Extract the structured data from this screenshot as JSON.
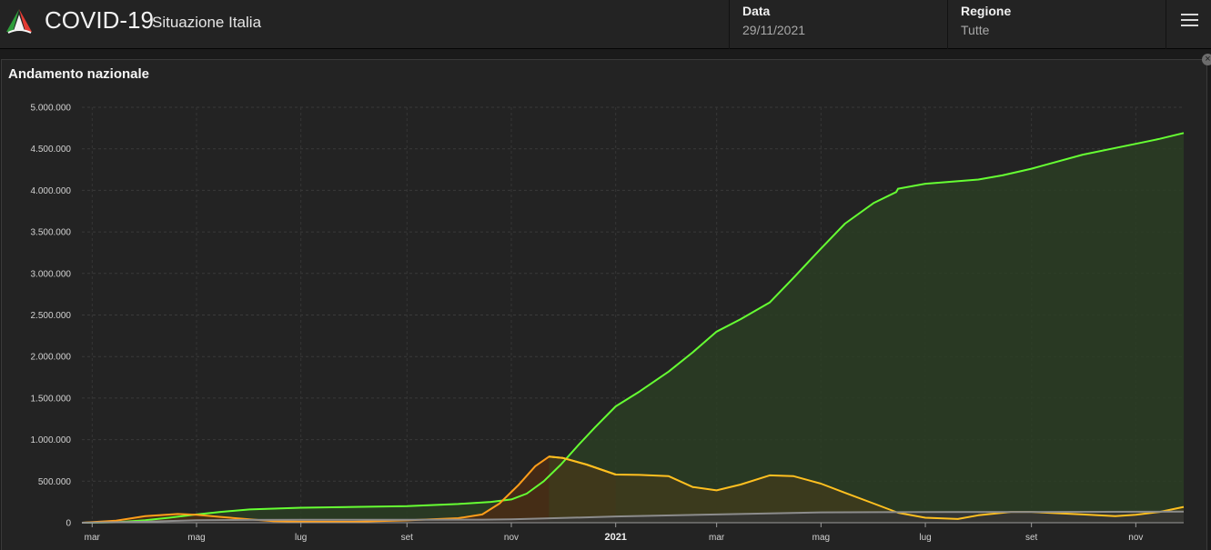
{
  "header": {
    "app_title": "COVID-19",
    "app_subtitle": "Situazione Italia",
    "date_label": "Data",
    "date_value": "29/11/2021",
    "region_label": "Regione",
    "region_value": "Tutte",
    "menu_icon": "hamburger-icon",
    "logo_icon": "italy-logo-icon"
  },
  "panel": {
    "title": "Andamento nazionale",
    "close_icon": "close-icon",
    "close_glyph": "×"
  },
  "colors": {
    "green": "#66ff33",
    "orange": "#ff9e1a",
    "gray": "#8c8c8c",
    "gold": "#ffc020"
  },
  "chart_data": {
    "type": "area",
    "x_axis": {
      "start": "2020-02-24",
      "end": "2021-11-29",
      "ticks": [
        {
          "date": "2020-03-01",
          "label": "mar"
        },
        {
          "date": "2020-05-01",
          "label": "mag"
        },
        {
          "date": "2020-07-01",
          "label": "lug"
        },
        {
          "date": "2020-09-01",
          "label": "set"
        },
        {
          "date": "2020-11-01",
          "label": "nov"
        },
        {
          "date": "2021-01-01",
          "label": "2021",
          "bold": true
        },
        {
          "date": "2021-03-01",
          "label": "mar"
        },
        {
          "date": "2021-05-01",
          "label": "mag"
        },
        {
          "date": "2021-07-01",
          "label": "lug"
        },
        {
          "date": "2021-09-01",
          "label": "set"
        },
        {
          "date": "2021-11-01",
          "label": "nov"
        }
      ]
    },
    "y_axis": {
      "min": 0,
      "max": 5000000,
      "ticks": [
        {
          "value": 0,
          "label": "0"
        },
        {
          "value": 500000,
          "label": "500.000"
        },
        {
          "value": 1000000,
          "label": "1.000.000"
        },
        {
          "value": 1500000,
          "label": "1.500.000"
        },
        {
          "value": 2000000,
          "label": "2.000.000"
        },
        {
          "value": 2500000,
          "label": "2.500.000"
        },
        {
          "value": 3000000,
          "label": "3.000.000"
        },
        {
          "value": 3500000,
          "label": "3.500.000"
        },
        {
          "value": 4000000,
          "label": "4.000.000"
        },
        {
          "value": 4500000,
          "label": "4.500.000"
        },
        {
          "value": 5000000,
          "label": "5.000.000"
        }
      ]
    },
    "grid": true,
    "legend": "none",
    "series": [
      {
        "color": "#66ff33",
        "fill": "#2a3d23",
        "points": [
          [
            "2020-02-24",
            0
          ],
          [
            "2020-03-15",
            5000
          ],
          [
            "2020-04-01",
            30000
          ],
          [
            "2020-04-15",
            60000
          ],
          [
            "2020-05-01",
            100000
          ],
          [
            "2020-05-15",
            130000
          ],
          [
            "2020-06-01",
            160000
          ],
          [
            "2020-06-15",
            170000
          ],
          [
            "2020-07-01",
            180000
          ],
          [
            "2020-08-01",
            190000
          ],
          [
            "2020-09-01",
            200000
          ],
          [
            "2020-10-01",
            225000
          ],
          [
            "2020-10-20",
            250000
          ],
          [
            "2020-11-01",
            280000
          ],
          [
            "2020-11-10",
            350000
          ],
          [
            "2020-11-20",
            500000
          ],
          [
            "2020-11-30",
            700000
          ],
          [
            "2020-12-10",
            930000
          ],
          [
            "2020-12-20",
            1150000
          ],
          [
            "2021-01-01",
            1400000
          ],
          [
            "2021-01-15",
            1580000
          ],
          [
            "2021-02-01",
            1820000
          ],
          [
            "2021-02-15",
            2050000
          ],
          [
            "2021-03-01",
            2300000
          ],
          [
            "2021-03-15",
            2450000
          ],
          [
            "2021-04-01",
            2650000
          ],
          [
            "2021-04-15",
            2950000
          ],
          [
            "2021-05-01",
            3300000
          ],
          [
            "2021-05-15",
            3600000
          ],
          [
            "2021-06-01",
            3850000
          ],
          [
            "2021-06-14",
            3980000
          ],
          [
            "2021-06-15",
            4020000
          ],
          [
            "2021-07-01",
            4080000
          ],
          [
            "2021-08-01",
            4130000
          ],
          [
            "2021-08-15",
            4180000
          ],
          [
            "2021-09-01",
            4260000
          ],
          [
            "2021-10-01",
            4430000
          ],
          [
            "2021-11-01",
            4560000
          ],
          [
            "2021-11-15",
            4620000
          ],
          [
            "2021-11-29",
            4690000
          ]
        ]
      },
      {
        "color": "#ff9e1a",
        "fill": "#4a2c14",
        "points": [
          [
            "2020-02-24",
            0
          ],
          [
            "2020-03-15",
            25000
          ],
          [
            "2020-04-01",
            80000
          ],
          [
            "2020-04-20",
            105000
          ],
          [
            "2020-05-01",
            95000
          ],
          [
            "2020-05-15",
            70000
          ],
          [
            "2020-06-01",
            40000
          ],
          [
            "2020-06-15",
            20000
          ],
          [
            "2020-07-01",
            13000
          ],
          [
            "2020-08-01",
            12000
          ],
          [
            "2020-09-01",
            28000
          ],
          [
            "2020-10-01",
            55000
          ],
          [
            "2020-10-15",
            100000
          ],
          [
            "2020-10-25",
            230000
          ],
          [
            "2020-11-05",
            450000
          ],
          [
            "2020-11-15",
            680000
          ],
          [
            "2020-11-23",
            795000
          ],
          [
            "2020-12-01",
            780000
          ],
          [
            "2020-12-15",
            700000
          ],
          [
            "2021-01-01",
            580000
          ]
        ]
      },
      {
        "color": "#ffc020",
        "fill": "#3e3b1c",
        "points": [
          [
            "2020-11-23",
            795000
          ],
          [
            "2020-12-01",
            780000
          ],
          [
            "2020-12-15",
            700000
          ],
          [
            "2021-01-01",
            580000
          ],
          [
            "2021-01-15",
            575000
          ],
          [
            "2021-02-01",
            560000
          ],
          [
            "2021-02-15",
            430000
          ],
          [
            "2021-03-01",
            390000
          ],
          [
            "2021-03-15",
            460000
          ],
          [
            "2021-04-01",
            570000
          ],
          [
            "2021-04-15",
            560000
          ],
          [
            "2021-05-01",
            470000
          ],
          [
            "2021-05-15",
            360000
          ],
          [
            "2021-06-01",
            230000
          ],
          [
            "2021-06-15",
            120000
          ],
          [
            "2021-07-01",
            60000
          ],
          [
            "2021-07-20",
            45000
          ],
          [
            "2021-08-01",
            90000
          ],
          [
            "2021-08-20",
            130000
          ],
          [
            "2021-09-01",
            130000
          ],
          [
            "2021-10-01",
            100000
          ],
          [
            "2021-10-20",
            80000
          ],
          [
            "2021-11-01",
            95000
          ],
          [
            "2021-11-15",
            130000
          ],
          [
            "2021-11-29",
            190000
          ]
        ]
      },
      {
        "color": "#8c8c8c",
        "fill": "#353535",
        "points": [
          [
            "2020-02-24",
            0
          ],
          [
            "2020-04-01",
            12000
          ],
          [
            "2020-05-01",
            29000
          ],
          [
            "2020-06-01",
            34000
          ],
          [
            "2020-07-01",
            35000
          ],
          [
            "2020-09-01",
            36000
          ],
          [
            "2020-10-15",
            37000
          ],
          [
            "2020-11-01",
            40000
          ],
          [
            "2020-12-01",
            57000
          ],
          [
            "2021-01-01",
            75000
          ],
          [
            "2021-03-01",
            100000
          ],
          [
            "2021-05-01",
            125000
          ],
          [
            "2021-06-01",
            127000
          ],
          [
            "2021-09-01",
            130000
          ],
          [
            "2021-11-29",
            133000
          ]
        ]
      }
    ]
  }
}
